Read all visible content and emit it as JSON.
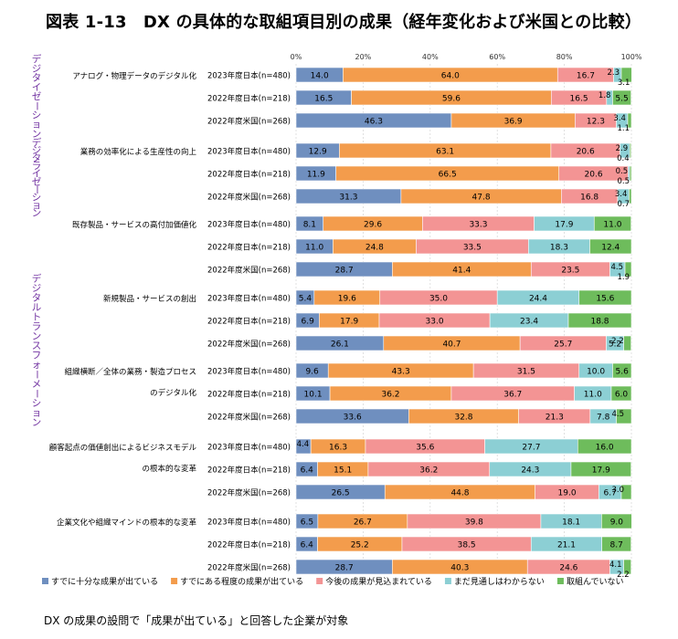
{
  "title": "図表 1-13　DX の具体的な取組項目別の成果（経年変化および米国との比較）",
  "footnote": "DX の成果の設問で「成果が出ている」と回答した企業が対象",
  "chart_data": {
    "type": "bar",
    "orientation": "horizontal",
    "stacked": "percent",
    "x_ticks": [
      "0%",
      "20%",
      "40%",
      "60%",
      "80%",
      "100%"
    ],
    "xlim": [
      0,
      100
    ],
    "legend_position": "bottom",
    "side_labels": [
      "デジタイゼーション",
      "デジタライゼーション",
      "デジタルトランスフォーメーション"
    ],
    "series": [
      {
        "name": "すでに十分な成果が出ている",
        "color": "#6f8fbf"
      },
      {
        "name": "すでにある程度の成果が出ている",
        "color": "#f39c4c"
      },
      {
        "name": "今後の成果が見込まれている",
        "color": "#f39494"
      },
      {
        "name": "まだ見通しはわからない",
        "color": "#8ccfd4"
      },
      {
        "name": "取組んでいない",
        "color": "#6ebc5c"
      }
    ],
    "groups": [
      {
        "label": [
          "アナログ・物理データのデジタル化"
        ],
        "rows": [
          {
            "label": "2023年度日本(n=480)",
            "values": [
              14.0,
              64.0,
              16.7,
              2.3,
              3.1
            ]
          },
          {
            "label": "2022年度日本(n=218)",
            "values": [
              16.5,
              59.6,
              16.5,
              1.8,
              5.5
            ]
          },
          {
            "label": "2022年度米国(n=268)",
            "values": [
              46.3,
              36.9,
              12.3,
              3.4,
              1.1
            ]
          }
        ]
      },
      {
        "label": [
          "業務の効率化による生産性の向上"
        ],
        "rows": [
          {
            "label": "2023年度日本(n=480)",
            "values": [
              12.9,
              63.1,
              20.6,
              2.9,
              0.4
            ]
          },
          {
            "label": "2022年度日本(n=218)",
            "values": [
              11.9,
              66.5,
              20.6,
              0.5,
              0.5
            ]
          },
          {
            "label": "2022年度米国(n=268)",
            "values": [
              31.3,
              47.8,
              16.8,
              3.4,
              0.7
            ]
          }
        ]
      },
      {
        "label": [
          "既存製品・サービスの高付加価値化"
        ],
        "rows": [
          {
            "label": "2023年度日本(n=480)",
            "values": [
              8.1,
              29.6,
              33.3,
              17.9,
              11.0
            ]
          },
          {
            "label": "2022年度日本(n=218)",
            "values": [
              11.0,
              24.8,
              33.5,
              18.3,
              12.4
            ]
          },
          {
            "label": "2022年度米国(n=268)",
            "values": [
              28.7,
              41.4,
              23.5,
              4.5,
              1.9
            ]
          }
        ]
      },
      {
        "label": [
          "新規製品・サービスの創出"
        ],
        "rows": [
          {
            "label": "2023年度日本(n=480)",
            "values": [
              5.4,
              19.6,
              35.0,
              24.4,
              15.6
            ]
          },
          {
            "label": "2022年度日本(n=218)",
            "values": [
              6.9,
              17.9,
              33.0,
              23.4,
              18.8
            ]
          },
          {
            "label": "2022年度米国(n=268)",
            "values": [
              26.1,
              40.7,
              25.7,
              5.2,
              2.2
            ]
          }
        ]
      },
      {
        "label": [
          "組織横断／全体の業務・製造プロセス",
          "のデジタル化"
        ],
        "rows": [
          {
            "label": "2023年度日本(n=480)",
            "values": [
              9.6,
              43.3,
              31.5,
              10.0,
              5.6
            ]
          },
          {
            "label": "2022年度日本(n=218)",
            "values": [
              10.1,
              36.2,
              36.7,
              11.0,
              6.0
            ]
          },
          {
            "label": "2022年度米国(n=268)",
            "values": [
              33.6,
              32.8,
              21.3,
              7.8,
              4.5
            ]
          }
        ]
      },
      {
        "label": [
          "顧客起点の価値創出によるビジネスモデル",
          "の根本的な変革"
        ],
        "rows": [
          {
            "label": "2023年度日本(n=480)",
            "values": [
              4.4,
              16.3,
              35.6,
              27.7,
              16.0
            ]
          },
          {
            "label": "2022年度日本(n=218)",
            "values": [
              6.4,
              15.1,
              36.2,
              24.3,
              17.9
            ]
          },
          {
            "label": "2022年度米国(n=268)",
            "values": [
              26.5,
              44.8,
              19.0,
              6.7,
              3.0
            ]
          }
        ]
      },
      {
        "label": [
          "企業文化や組織マインドの根本的な変革"
        ],
        "rows": [
          {
            "label": "2023年度日本(n=480)",
            "values": [
              6.5,
              26.7,
              39.8,
              18.1,
              9.0
            ]
          },
          {
            "label": "2022年度日本(n=218)",
            "values": [
              6.4,
              25.2,
              38.5,
              21.1,
              8.7
            ]
          },
          {
            "label": "2022年度米国(n=268)",
            "values": [
              28.7,
              40.3,
              24.6,
              4.1,
              2.2
            ]
          }
        ]
      }
    ]
  }
}
